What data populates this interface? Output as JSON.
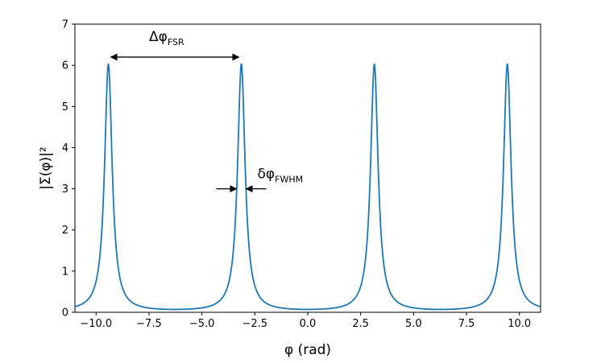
{
  "chart_data": {
    "type": "line",
    "title": "",
    "xlabel": "φ (rad)",
    "ylabel": "|Σ(φ)|²",
    "xlim": [
      -11,
      11
    ],
    "ylim": [
      0,
      7
    ],
    "x_ticks": [
      -10.0,
      -7.5,
      -5.0,
      -2.5,
      0.0,
      2.5,
      5.0,
      7.5,
      10.0
    ],
    "x_tick_labels": [
      "−10.0",
      "−7.5",
      "−5.0",
      "−2.5",
      "0.0",
      "2.5",
      "5.0",
      "7.5",
      "10.0"
    ],
    "y_ticks": [
      0,
      1,
      2,
      3,
      4,
      5,
      6,
      7
    ],
    "y_tick_labels": [
      "0",
      "1",
      "2",
      "3",
      "4",
      "5",
      "6",
      "7"
    ],
    "grid": false,
    "legend": "none",
    "series": [
      {
        "color": "#1f77b4",
        "peaks_x": [
          -9.42,
          -3.14,
          3.14,
          9.42
        ],
        "peak_value": 6.03,
        "min_value": 0.07,
        "period": 6.283
      }
    ],
    "annotations": [
      {
        "main": "Δφ",
        "sub": "FSR",
        "from_x": -9.42,
        "to_x": -3.14,
        "y": 6.2
      },
      {
        "main": "δφ",
        "sub": "FWHM",
        "at_x": -3.14,
        "y": 3.0
      }
    ]
  }
}
